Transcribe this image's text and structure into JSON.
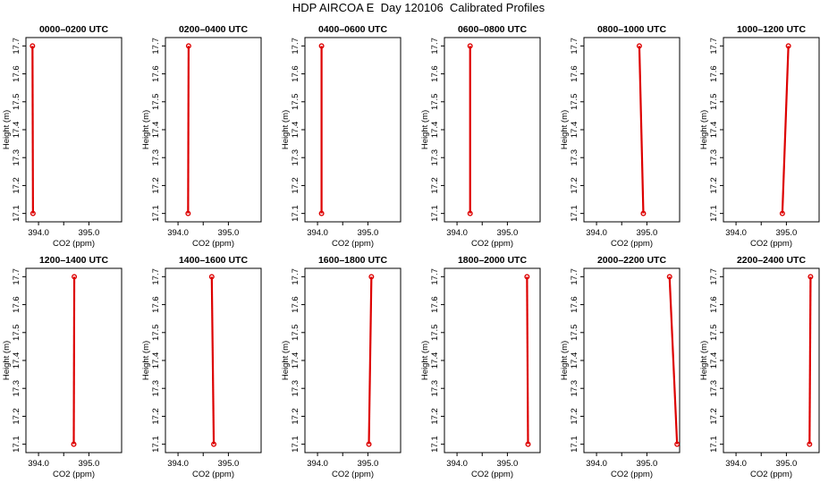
{
  "title": "HDP AIRCOA E  Day 120106  Calibrated Profiles",
  "colors": {
    "series": "#dd0000",
    "axis": "#000000",
    "background": "#ffffff"
  },
  "chart_data": [
    {
      "type": "line",
      "title": "0000–0200 UTC",
      "xlabel": "CO2 (ppm)",
      "ylabel": "Height (m)",
      "xlim": [
        393.75,
        395.65
      ],
      "ylim": [
        17.07,
        17.73
      ],
      "xticks": [
        "394.0",
        "395.0"
      ],
      "yticks": [
        "17.1",
        "17.2",
        "17.3",
        "17.4",
        "17.5",
        "17.6",
        "17.7"
      ],
      "grid": false,
      "series": [
        {
          "points": [
            {
              "x": 393.89,
              "y": 17.1
            },
            {
              "x": 393.88,
              "y": 17.7
            }
          ]
        }
      ]
    },
    {
      "type": "line",
      "title": "0200–0400 UTC",
      "xlabel": "CO2 (ppm)",
      "ylabel": "Height (m)",
      "xlim": [
        393.75,
        395.65
      ],
      "ylim": [
        17.07,
        17.73
      ],
      "xticks": [
        "394.0",
        "395.0"
      ],
      "yticks": [
        "17.1",
        "17.2",
        "17.3",
        "17.4",
        "17.5",
        "17.6",
        "17.7"
      ],
      "grid": false,
      "series": [
        {
          "points": [
            {
              "x": 394.2,
              "y": 17.1
            },
            {
              "x": 394.21,
              "y": 17.7
            }
          ]
        }
      ]
    },
    {
      "type": "line",
      "title": "0400–0600 UTC",
      "xlabel": "CO2 (ppm)",
      "ylabel": "Height (m)",
      "xlim": [
        393.75,
        395.65
      ],
      "ylim": [
        17.07,
        17.73
      ],
      "xticks": [
        "394.0",
        "395.0"
      ],
      "yticks": [
        "17.1",
        "17.2",
        "17.3",
        "17.4",
        "17.5",
        "17.6",
        "17.7"
      ],
      "grid": false,
      "series": [
        {
          "points": [
            {
              "x": 394.08,
              "y": 17.1
            },
            {
              "x": 394.08,
              "y": 17.7
            }
          ]
        }
      ]
    },
    {
      "type": "line",
      "title": "0600–0800 UTC",
      "xlabel": "CO2 (ppm)",
      "ylabel": "Height (m)",
      "xlim": [
        393.75,
        395.65
      ],
      "ylim": [
        17.07,
        17.73
      ],
      "xticks": [
        "394.0",
        "395.0"
      ],
      "yticks": [
        "17.1",
        "17.2",
        "17.3",
        "17.4",
        "17.5",
        "17.6",
        "17.7"
      ],
      "grid": false,
      "series": [
        {
          "points": [
            {
              "x": 394.26,
              "y": 17.1
            },
            {
              "x": 394.26,
              "y": 17.7
            }
          ]
        }
      ]
    },
    {
      "type": "line",
      "title": "0800–1000 UTC",
      "xlabel": "CO2 (ppm)",
      "ylabel": "Height (m)",
      "xlim": [
        393.75,
        395.65
      ],
      "ylim": [
        17.07,
        17.73
      ],
      "xticks": [
        "394.0",
        "395.0"
      ],
      "yticks": [
        "17.1",
        "17.2",
        "17.3",
        "17.4",
        "17.5",
        "17.6",
        "17.7"
      ],
      "grid": false,
      "series": [
        {
          "points": [
            {
              "x": 394.93,
              "y": 17.1
            },
            {
              "x": 394.85,
              "y": 17.7
            }
          ]
        }
      ]
    },
    {
      "type": "line",
      "title": "1000–1200 UTC",
      "xlabel": "CO2 (ppm)",
      "ylabel": "Height (m)",
      "xlim": [
        393.75,
        395.65
      ],
      "ylim": [
        17.07,
        17.73
      ],
      "xticks": [
        "394.0",
        "395.0"
      ],
      "yticks": [
        "17.1",
        "17.2",
        "17.3",
        "17.4",
        "17.5",
        "17.6",
        "17.7"
      ],
      "grid": false,
      "series": [
        {
          "points": [
            {
              "x": 394.92,
              "y": 17.1
            },
            {
              "x": 395.04,
              "y": 17.7
            }
          ]
        }
      ]
    },
    {
      "type": "line",
      "title": "1200–1400 UTC",
      "xlabel": "CO2 (ppm)",
      "ylabel": "Height (m)",
      "xlim": [
        393.75,
        395.65
      ],
      "ylim": [
        17.07,
        17.73
      ],
      "xticks": [
        "394.0",
        "395.0"
      ],
      "yticks": [
        "17.1",
        "17.2",
        "17.3",
        "17.4",
        "17.5",
        "17.6",
        "17.7"
      ],
      "grid": false,
      "series": [
        {
          "points": [
            {
              "x": 394.7,
              "y": 17.1
            },
            {
              "x": 394.71,
              "y": 17.7
            }
          ]
        }
      ]
    },
    {
      "type": "line",
      "title": "1400–1600 UTC",
      "xlabel": "CO2 (ppm)",
      "ylabel": "Height (m)",
      "xlim": [
        393.75,
        395.65
      ],
      "ylim": [
        17.07,
        17.73
      ],
      "xticks": [
        "394.0",
        "395.0"
      ],
      "yticks": [
        "17.1",
        "17.2",
        "17.3",
        "17.4",
        "17.5",
        "17.6",
        "17.7"
      ],
      "grid": false,
      "series": [
        {
          "points": [
            {
              "x": 394.71,
              "y": 17.1
            },
            {
              "x": 394.67,
              "y": 17.7
            }
          ]
        }
      ]
    },
    {
      "type": "line",
      "title": "1600–1800 UTC",
      "xlabel": "CO2 (ppm)",
      "ylabel": "Height (m)",
      "xlim": [
        393.75,
        395.65
      ],
      "ylim": [
        17.07,
        17.73
      ],
      "xticks": [
        "394.0",
        "395.0"
      ],
      "yticks": [
        "17.1",
        "17.2",
        "17.3",
        "17.4",
        "17.5",
        "17.6",
        "17.7"
      ],
      "grid": false,
      "series": [
        {
          "points": [
            {
              "x": 395.02,
              "y": 17.1
            },
            {
              "x": 395.07,
              "y": 17.7
            }
          ]
        }
      ]
    },
    {
      "type": "line",
      "title": "1800–2000 UTC",
      "xlabel": "CO2 (ppm)",
      "ylabel": "Height (m)",
      "xlim": [
        393.75,
        395.65
      ],
      "ylim": [
        17.07,
        17.73
      ],
      "xticks": [
        "394.0",
        "395.0"
      ],
      "yticks": [
        "17.1",
        "17.2",
        "17.3",
        "17.4",
        "17.5",
        "17.6",
        "17.7"
      ],
      "grid": false,
      "series": [
        {
          "points": [
            {
              "x": 395.41,
              "y": 17.1
            },
            {
              "x": 395.39,
              "y": 17.7
            }
          ]
        }
      ]
    },
    {
      "type": "line",
      "title": "2000–2200 UTC",
      "xlabel": "CO2 (ppm)",
      "ylabel": "Height (m)",
      "xlim": [
        393.75,
        395.65
      ],
      "ylim": [
        17.07,
        17.73
      ],
      "xticks": [
        "394.0",
        "395.0"
      ],
      "yticks": [
        "17.1",
        "17.2",
        "17.3",
        "17.4",
        "17.5",
        "17.6",
        "17.7"
      ],
      "grid": false,
      "series": [
        {
          "points": [
            {
              "x": 395.6,
              "y": 17.1
            },
            {
              "x": 395.45,
              "y": 17.7
            }
          ]
        }
      ]
    },
    {
      "type": "line",
      "title": "2200–2400 UTC",
      "xlabel": "CO2 (ppm)",
      "ylabel": "Height (m)",
      "xlim": [
        393.75,
        395.65
      ],
      "ylim": [
        17.07,
        17.73
      ],
      "xticks": [
        "394.0",
        "395.0"
      ],
      "yticks": [
        "17.1",
        "17.2",
        "17.3",
        "17.4",
        "17.5",
        "17.6",
        "17.7"
      ],
      "grid": false,
      "series": [
        {
          "points": [
            {
              "x": 395.46,
              "y": 17.1
            },
            {
              "x": 395.48,
              "y": 17.7
            }
          ]
        }
      ]
    }
  ]
}
